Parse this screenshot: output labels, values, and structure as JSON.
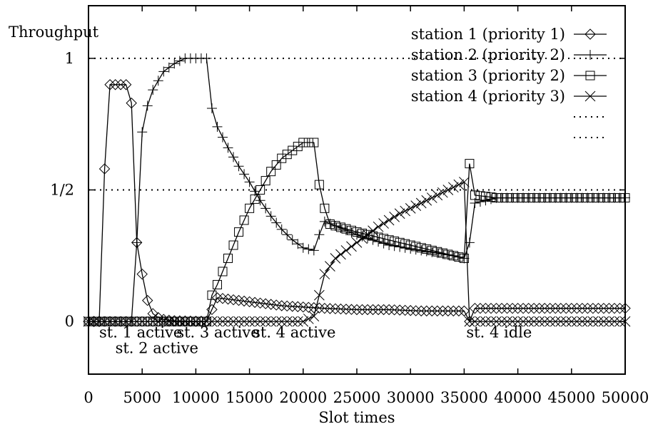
{
  "chart_data": {
    "type": "line",
    "ylabel": "Throughput",
    "xlabel": "Slot times",
    "xlim": [
      0,
      50000
    ],
    "ylim": [
      -0.2,
      1.2
    ],
    "x_ticks": [
      {
        "value": 0,
        "label": "0"
      },
      {
        "value": 5000,
        "label": "5000"
      },
      {
        "value": 10000,
        "label": "10000"
      },
      {
        "value": 15000,
        "label": "15000"
      },
      {
        "value": 20000,
        "label": "20000"
      },
      {
        "value": 25000,
        "label": "25000"
      },
      {
        "value": 30000,
        "label": "30000"
      },
      {
        "value": 35000,
        "label": "35000"
      },
      {
        "value": 40000,
        "label": "40000"
      },
      {
        "value": 45000,
        "label": "45000"
      },
      {
        "value": 50000,
        "label": "50000"
      }
    ],
    "y_ticks": [
      {
        "value": 0,
        "label": "0"
      },
      {
        "value": 0.5,
        "label": "1/2"
      },
      {
        "value": 1,
        "label": "1"
      }
    ],
    "reference_lines": [
      1,
      0.5
    ],
    "legend_position": "top-right",
    "series": [
      {
        "name": "station 1 (priority 1)",
        "marker": "diamond",
        "x": [
          0,
          1000,
          1500,
          2000,
          3000,
          3500,
          4000,
          4500,
          5000,
          5500,
          6000,
          6500,
          7000,
          7500,
          8000,
          9000,
          10000,
          11000,
          12000,
          14000,
          16000,
          18000,
          20000,
          22000,
          25000,
          28000,
          31000,
          34000,
          35000,
          35500,
          36000,
          38000,
          41000,
          44000,
          47000,
          50000
        ],
        "y": [
          0,
          0,
          0.58,
          0.9,
          0.9,
          0.9,
          0.83,
          0.3,
          0.18,
          0.08,
          0.03,
          0.015,
          0.008,
          0.005,
          0.003,
          0.002,
          0.001,
          0.001,
          0.09,
          0.08,
          0.07,
          0.06,
          0.055,
          0.05,
          0.045,
          0.045,
          0.04,
          0.04,
          0.04,
          0.0,
          0.05,
          0.05,
          0.05,
          0.05,
          0.05,
          0.05
        ]
      },
      {
        "name": "station 2 (priority 2)",
        "marker": "plus",
        "x": [
          0,
          4000,
          4500,
          5000,
          5500,
          6000,
          7000,
          8000,
          9000,
          10000,
          11000,
          11500,
          12000,
          13000,
          14000,
          15000,
          16000,
          17000,
          18000,
          19000,
          20000,
          21000,
          21500,
          22000,
          25000,
          28000,
          31000,
          34000,
          35000,
          35500,
          36000,
          38000,
          41000,
          44000,
          47000,
          50000
        ],
        "y": [
          0,
          0,
          0.3,
          0.72,
          0.82,
          0.88,
          0.95,
          0.98,
          1.0,
          1.0,
          1.0,
          0.81,
          0.74,
          0.66,
          0.59,
          0.53,
          0.46,
          0.4,
          0.35,
          0.31,
          0.28,
          0.27,
          0.33,
          0.38,
          0.33,
          0.29,
          0.27,
          0.25,
          0.24,
          0.3,
          0.45,
          0.47,
          0.47,
          0.47,
          0.47,
          0.47
        ]
      },
      {
        "name": "station 3 (priority 2)",
        "marker": "square",
        "x": [
          0,
          11000,
          11500,
          12000,
          13000,
          14000,
          15000,
          16000,
          17000,
          18000,
          19000,
          20000,
          21000,
          21500,
          22000,
          22500,
          25000,
          28000,
          31000,
          34000,
          35000,
          35500,
          36000,
          38000,
          41000,
          44000,
          47000,
          50000
        ],
        "y": [
          0,
          0,
          0.1,
          0.14,
          0.24,
          0.34,
          0.43,
          0.5,
          0.57,
          0.62,
          0.65,
          0.68,
          0.68,
          0.52,
          0.43,
          0.37,
          0.34,
          0.31,
          0.28,
          0.25,
          0.24,
          0.6,
          0.48,
          0.47,
          0.47,
          0.47,
          0.47,
          0.47
        ]
      },
      {
        "name": "station 4 (priority 3)",
        "marker": "cross",
        "x": [
          0,
          20000,
          21000,
          21500,
          22000,
          23000,
          25000,
          27000,
          29000,
          31000,
          33000,
          34000,
          35000,
          35500,
          36000,
          38000,
          41000,
          44000,
          47000,
          50000
        ],
        "y": [
          0,
          0.0,
          0.02,
          0.1,
          0.18,
          0.24,
          0.3,
          0.36,
          0.41,
          0.45,
          0.49,
          0.51,
          0.53,
          0.0,
          0.0,
          0.0,
          0.0,
          0.0,
          0.0,
          0.0
        ]
      },
      {
        "name": "",
        "marker": "none",
        "style": "dotted",
        "legend_only": true,
        "x": [],
        "y": []
      },
      {
        "name": "",
        "marker": "none",
        "style": "dotted",
        "legend_only": true,
        "x": [],
        "y": []
      }
    ],
    "annotations": [
      {
        "text": "st. 1 active",
        "x": 1000,
        "y": -0.06
      },
      {
        "text": "st. 2 active",
        "x": 2500,
        "y": -0.12
      },
      {
        "text": "st. 3 active",
        "x": 8200,
        "y": -0.06
      },
      {
        "text": "st. 4 active",
        "x": 15300,
        "y": -0.06
      },
      {
        "text": "st. 4 idle",
        "x": 35200,
        "y": -0.06
      }
    ]
  }
}
